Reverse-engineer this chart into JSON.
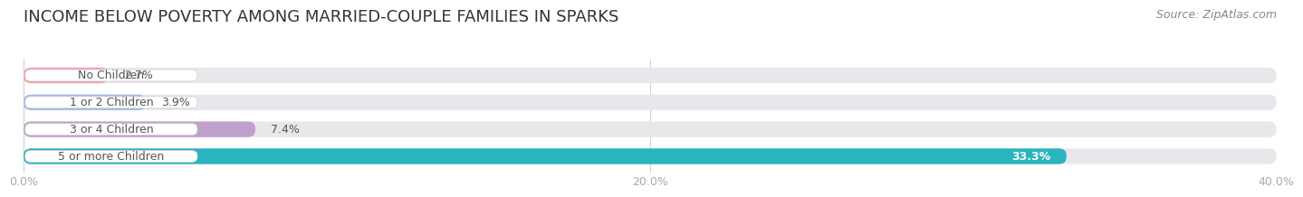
{
  "title": "INCOME BELOW POVERTY AMONG MARRIED-COUPLE FAMILIES IN SPARKS",
  "source": "Source: ZipAtlas.com",
  "categories": [
    "No Children",
    "1 or 2 Children",
    "3 or 4 Children",
    "5 or more Children"
  ],
  "values": [
    2.7,
    3.9,
    7.4,
    33.3
  ],
  "bar_colors": [
    "#f0a0a8",
    "#a8b8e8",
    "#c0a0cc",
    "#2ab4be"
  ],
  "xlim": [
    0,
    40
  ],
  "xticks": [
    0.0,
    20.0,
    40.0
  ],
  "xtick_labels": [
    "0.0%",
    "20.0%",
    "40.0%"
  ],
  "background_color": "#ffffff",
  "bar_bg_color": "#e8e8ec",
  "title_fontsize": 13,
  "source_fontsize": 9,
  "label_fontsize": 9,
  "value_fontsize": 9,
  "tick_fontsize": 9,
  "bar_height": 0.58
}
